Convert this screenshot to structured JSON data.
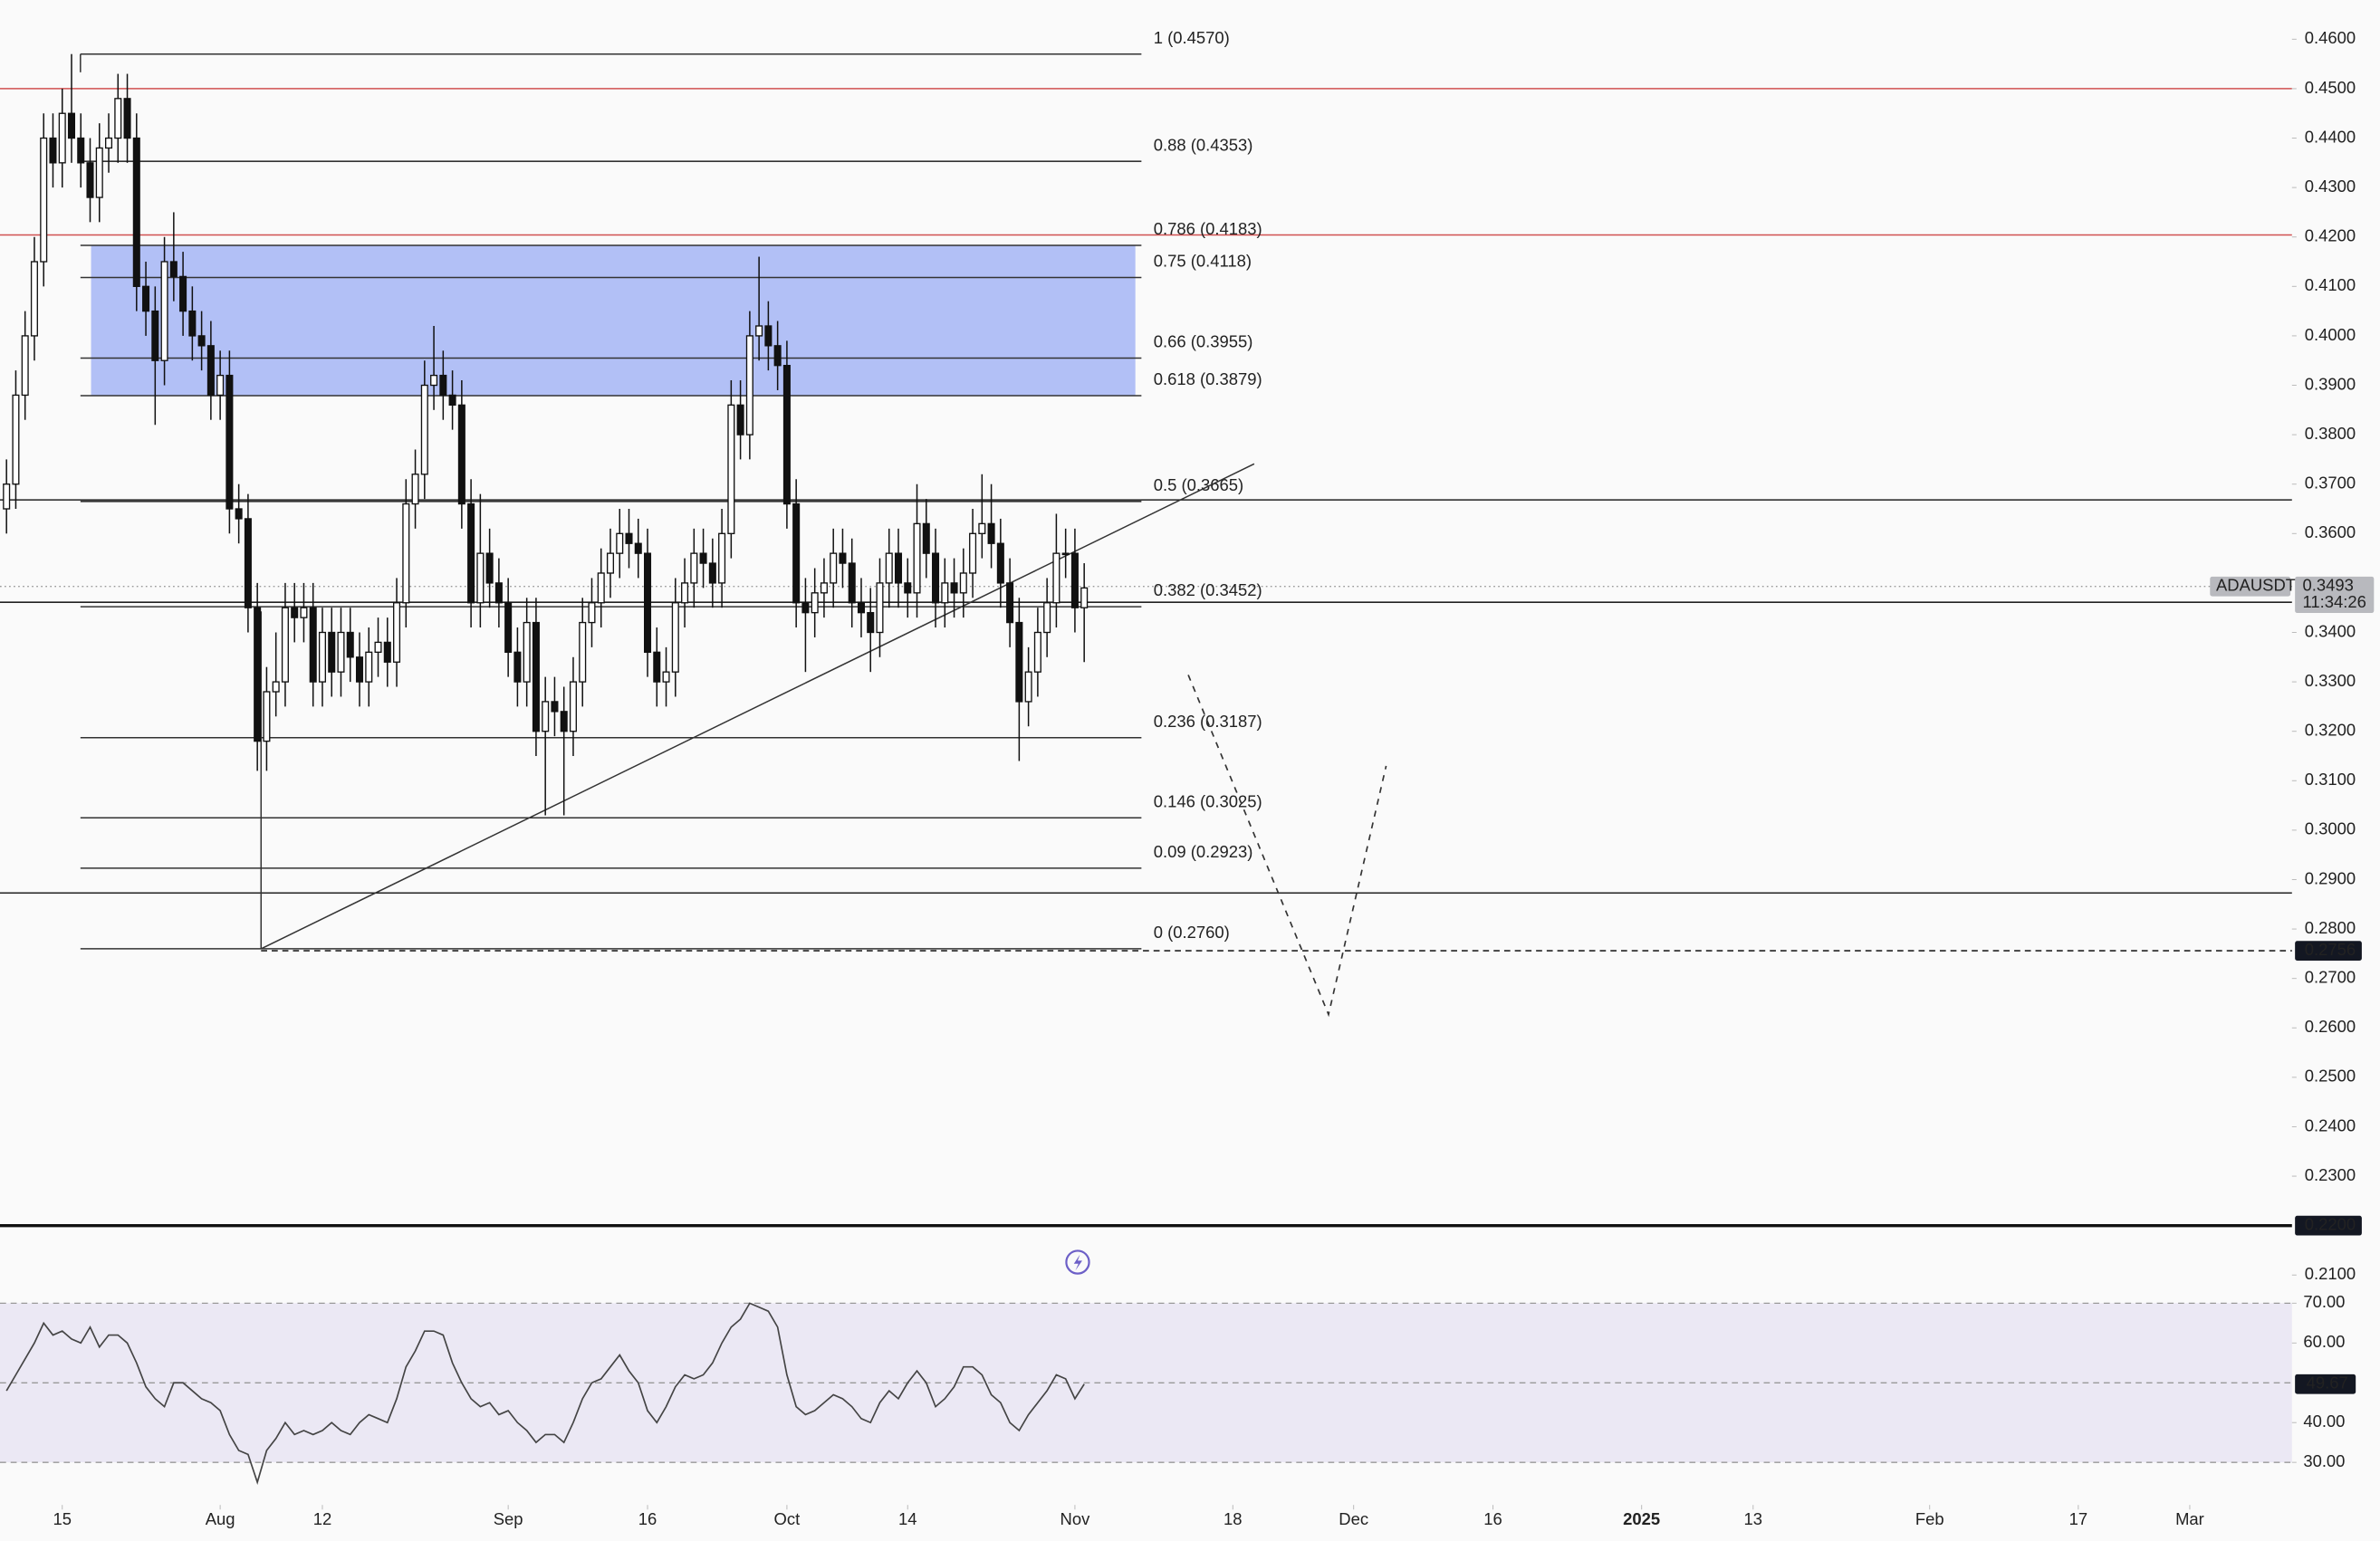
{
  "chart_data": {
    "type": "candlestick",
    "symbol": "ADAUSDT",
    "countdown": "11:34:26",
    "x": [
      8,
      9,
      10,
      11,
      12,
      13,
      14,
      15,
      16,
      17,
      18,
      19,
      20,
      21,
      22,
      23,
      24,
      25,
      26,
      27,
      28,
      29,
      30,
      31,
      32,
      33,
      34,
      35,
      36,
      37,
      38,
      39,
      40,
      41,
      42,
      43,
      44,
      45,
      46,
      47,
      48,
      49,
      50,
      51,
      52,
      53,
      54,
      55,
      56,
      57,
      58,
      59,
      60,
      61,
      62,
      63,
      64,
      65,
      66,
      67,
      68,
      69,
      70,
      71,
      72,
      73,
      74,
      75,
      76,
      77,
      78,
      79,
      80,
      81,
      82,
      83,
      84,
      85,
      86,
      87,
      88,
      89,
      90,
      91,
      92,
      93,
      94,
      95,
      96,
      97,
      98,
      99,
      100,
      101,
      102,
      103,
      104,
      105,
      106,
      107,
      108,
      109,
      110,
      111,
      112,
      113,
      114,
      115,
      116,
      117,
      118,
      119,
      120,
      121,
      122,
      123,
      124
    ],
    "open": [
      0.365,
      0.37,
      0.388,
      0.4,
      0.415,
      0.44,
      0.435,
      0.445,
      0.44,
      0.435,
      0.428,
      0.438,
      0.44,
      0.448,
      0.44,
      0.41,
      0.405,
      0.395,
      0.415,
      0.412,
      0.405,
      0.4,
      0.398,
      0.388,
      0.392,
      0.365,
      0.363,
      0.345,
      0.318,
      0.328,
      0.33,
      0.345,
      0.343,
      0.345,
      0.33,
      0.34,
      0.332,
      0.34,
      0.335,
      0.33,
      0.336,
      0.338,
      0.334,
      0.346,
      0.366,
      0.372,
      0.39,
      0.392,
      0.388,
      0.386,
      0.366,
      0.346,
      0.356,
      0.35,
      0.346,
      0.336,
      0.33,
      0.342,
      0.32,
      0.326,
      0.324,
      0.32,
      0.33,
      0.342,
      0.346,
      0.352,
      0.356,
      0.36,
      0.358,
      0.356,
      0.336,
      0.33,
      0.332,
      0.346,
      0.35,
      0.356,
      0.354,
      0.35,
      0.36,
      0.386,
      0.38,
      0.4,
      0.402,
      0.398,
      0.394,
      0.366,
      0.346,
      0.344,
      0.348,
      0.35,
      0.356,
      0.354,
      0.346,
      0.344,
      0.34,
      0.35,
      0.356,
      0.35,
      0.348,
      0.362,
      0.356,
      0.346,
      0.35,
      0.348,
      0.352,
      0.36,
      0.362,
      0.358,
      0.35,
      0.342,
      0.326,
      0.332,
      0.34,
      0.346,
      0.356,
      0.356,
      0.345
    ],
    "high": [
      0.375,
      0.393,
      0.405,
      0.42,
      0.445,
      0.445,
      0.45,
      0.457,
      0.445,
      0.44,
      0.443,
      0.445,
      0.453,
      0.453,
      0.445,
      0.415,
      0.41,
      0.42,
      0.425,
      0.417,
      0.41,
      0.405,
      0.403,
      0.397,
      0.397,
      0.37,
      0.368,
      0.35,
      0.333,
      0.34,
      0.35,
      0.35,
      0.35,
      0.35,
      0.345,
      0.345,
      0.345,
      0.345,
      0.34,
      0.341,
      0.343,
      0.343,
      0.351,
      0.371,
      0.377,
      0.395,
      0.402,
      0.397,
      0.393,
      0.391,
      0.371,
      0.368,
      0.361,
      0.355,
      0.351,
      0.341,
      0.347,
      0.347,
      0.331,
      0.331,
      0.329,
      0.335,
      0.347,
      0.351,
      0.357,
      0.361,
      0.365,
      0.365,
      0.363,
      0.361,
      0.341,
      0.337,
      0.351,
      0.355,
      0.361,
      0.361,
      0.359,
      0.365,
      0.391,
      0.391,
      0.405,
      0.416,
      0.407,
      0.403,
      0.399,
      0.371,
      0.351,
      0.353,
      0.355,
      0.361,
      0.361,
      0.359,
      0.351,
      0.349,
      0.355,
      0.361,
      0.361,
      0.355,
      0.37,
      0.367,
      0.361,
      0.355,
      0.355,
      0.357,
      0.365,
      0.372,
      0.37,
      0.363,
      0.355,
      0.347,
      0.337,
      0.345,
      0.351,
      0.364,
      0.361,
      0.361,
      0.354
    ],
    "low": [
      0.36,
      0.365,
      0.383,
      0.395,
      0.41,
      0.43,
      0.43,
      0.435,
      0.43,
      0.423,
      0.423,
      0.433,
      0.435,
      0.435,
      0.405,
      0.4,
      0.382,
      0.39,
      0.407,
      0.4,
      0.395,
      0.393,
      0.383,
      0.383,
      0.36,
      0.358,
      0.34,
      0.312,
      0.312,
      0.323,
      0.325,
      0.338,
      0.338,
      0.325,
      0.325,
      0.327,
      0.327,
      0.33,
      0.325,
      0.325,
      0.331,
      0.329,
      0.329,
      0.341,
      0.361,
      0.367,
      0.385,
      0.383,
      0.381,
      0.361,
      0.341,
      0.341,
      0.345,
      0.341,
      0.331,
      0.325,
      0.325,
      0.315,
      0.303,
      0.319,
      0.303,
      0.315,
      0.325,
      0.337,
      0.341,
      0.347,
      0.351,
      0.353,
      0.351,
      0.331,
      0.325,
      0.325,
      0.327,
      0.341,
      0.345,
      0.349,
      0.345,
      0.345,
      0.355,
      0.375,
      0.375,
      0.395,
      0.393,
      0.389,
      0.361,
      0.341,
      0.332,
      0.339,
      0.343,
      0.345,
      0.349,
      0.341,
      0.339,
      0.332,
      0.335,
      0.345,
      0.345,
      0.343,
      0.343,
      0.351,
      0.341,
      0.341,
      0.343,
      0.343,
      0.347,
      0.355,
      0.353,
      0.345,
      0.337,
      0.314,
      0.321,
      0.327,
      0.335,
      0.341,
      0.351,
      0.34,
      0.334
    ],
    "close": [
      0.37,
      0.388,
      0.4,
      0.415,
      0.44,
      0.435,
      0.445,
      0.44,
      0.435,
      0.428,
      0.438,
      0.44,
      0.448,
      0.44,
      0.41,
      0.405,
      0.395,
      0.415,
      0.412,
      0.405,
      0.4,
      0.398,
      0.388,
      0.392,
      0.365,
      0.363,
      0.345,
      0.318,
      0.328,
      0.33,
      0.345,
      0.343,
      0.345,
      0.33,
      0.34,
      0.332,
      0.34,
      0.335,
      0.33,
      0.336,
      0.338,
      0.334,
      0.346,
      0.366,
      0.372,
      0.39,
      0.392,
      0.388,
      0.386,
      0.366,
      0.346,
      0.356,
      0.35,
      0.346,
      0.336,
      0.33,
      0.342,
      0.32,
      0.326,
      0.324,
      0.32,
      0.33,
      0.342,
      0.346,
      0.352,
      0.356,
      0.36,
      0.358,
      0.356,
      0.336,
      0.33,
      0.332,
      0.346,
      0.35,
      0.356,
      0.354,
      0.35,
      0.36,
      0.386,
      0.38,
      0.4,
      0.402,
      0.398,
      0.394,
      0.366,
      0.346,
      0.344,
      0.348,
      0.35,
      0.356,
      0.354,
      0.346,
      0.344,
      0.34,
      0.35,
      0.356,
      0.35,
      0.348,
      0.362,
      0.356,
      0.346,
      0.35,
      0.348,
      0.352,
      0.36,
      0.362,
      0.358,
      0.35,
      0.342,
      0.326,
      0.332,
      0.34,
      0.346,
      0.356,
      0.356,
      0.345,
      0.349
    ],
    "xlim": [
      7.3,
      254.0
    ],
    "xticks": [
      {
        "value": 14,
        "label": "15"
      },
      {
        "value": 31,
        "label": "Aug"
      },
      {
        "value": 42,
        "label": "12"
      },
      {
        "value": 62,
        "label": "Sep"
      },
      {
        "value": 77,
        "label": "16"
      },
      {
        "value": 92,
        "label": "Oct"
      },
      {
        "value": 105,
        "label": "14"
      },
      {
        "value": 123,
        "label": "Nov"
      },
      {
        "value": 140,
        "label": "18"
      },
      {
        "value": 153,
        "label": "Dec"
      },
      {
        "value": 168,
        "label": "16"
      },
      {
        "value": 184,
        "label": "2025"
      },
      {
        "value": 196,
        "label": "13"
      },
      {
        "value": 215,
        "label": "Feb"
      },
      {
        "value": 231,
        "label": "17"
      },
      {
        "value": 243,
        "label": "Mar"
      }
    ],
    "ylim": [
      0.208,
      0.4674
    ],
    "yticks": [
      {
        "value": 0.46,
        "label": "0.4600"
      },
      {
        "value": 0.45,
        "label": "0.4500"
      },
      {
        "value": 0.44,
        "label": "0.4400"
      },
      {
        "value": 0.43,
        "label": "0.4300"
      },
      {
        "value": 0.42,
        "label": "0.4200"
      },
      {
        "value": 0.41,
        "label": "0.4100"
      },
      {
        "value": 0.4,
        "label": "0.4000"
      },
      {
        "value": 0.39,
        "label": "0.3900"
      },
      {
        "value": 0.38,
        "label": "0.3800"
      },
      {
        "value": 0.37,
        "label": "0.3700"
      },
      {
        "value": 0.36,
        "label": "0.3600"
      },
      {
        "value": 0.34,
        "label": "0.3400"
      },
      {
        "value": 0.33,
        "label": "0.3300"
      },
      {
        "value": 0.32,
        "label": "0.3200"
      },
      {
        "value": 0.31,
        "label": "0.3100"
      },
      {
        "value": 0.3,
        "label": "0.3000"
      },
      {
        "value": 0.29,
        "label": "0.2900"
      },
      {
        "value": 0.28,
        "label": "0.2800"
      },
      {
        "value": 0.27,
        "label": "0.2700"
      },
      {
        "value": 0.26,
        "label": "0.2600"
      },
      {
        "value": 0.25,
        "label": "0.2500"
      },
      {
        "value": 0.24,
        "label": "0.2400"
      },
      {
        "value": 0.23,
        "label": "0.2300"
      },
      {
        "value": 0.21,
        "label": "0.2100"
      }
    ],
    "fib_levels": [
      {
        "value": 0.457,
        "label": "1 (0.4570)",
        "color": "#222222"
      },
      {
        "value": 0.4353,
        "label": "0.88 (0.4353)",
        "color": "#222222"
      },
      {
        "value": 0.4183,
        "label": "0.786 (0.4183)",
        "color": "#222222"
      },
      {
        "value": 0.4118,
        "label": "0.75 (0.4118)",
        "color": "#222222"
      },
      {
        "value": 0.3955,
        "label": "0.66 (0.3955)",
        "color": "#b24a4a"
      },
      {
        "value": 0.3879,
        "label": "0.618 (0.3879)",
        "color": "#b24a4a"
      },
      {
        "value": 0.3665,
        "label": "0.5 (0.3665)",
        "color": "#222222"
      },
      {
        "value": 0.3452,
        "label": "0.382 (0.3452)",
        "color": "#222222"
      },
      {
        "value": 0.3187,
        "label": "0.236 (0.3187)",
        "color": "#222222"
      },
      {
        "value": 0.3025,
        "label": "0.146 (0.3025)",
        "color": "#222222"
      },
      {
        "value": 0.2923,
        "label": "0.09 (0.2923)",
        "color": "#222222"
      },
      {
        "value": 0.276,
        "label": "0 (0.2760)",
        "color": "#222222"
      }
    ],
    "fib_zone": [
      0.4183,
      0.3879
    ],
    "fib_zone_color": "#aebdf5",
    "horizontal_lines": [
      {
        "value": 0.45,
        "color": "#d05050"
      },
      {
        "value": 0.4204,
        "color": "#d05050"
      },
      {
        "value": 0.3668,
        "color": "#222222"
      },
      {
        "value": 0.3461,
        "color": "#222222"
      },
      {
        "value": 0.2873,
        "color": "#222222"
      }
    ],
    "trendline": {
      "x": [
        35.4,
        142.3
      ],
      "y": [
        0.276,
        0.3741
      ]
    },
    "projection": {
      "x": [
        135.2,
        150.3,
        156.5
      ],
      "y": [
        0.3314,
        0.2627,
        0.313
      ]
    },
    "last_price": 0.3493,
    "support_tag": 0.2756,
    "base_line": {
      "value": 0.22,
      "label": "0.2200"
    },
    "rsi": {
      "values": [
        48,
        52,
        56,
        60,
        65,
        62,
        63,
        61,
        60,
        64,
        59,
        62,
        62,
        60,
        55,
        49,
        46,
        44,
        50,
        50,
        48,
        46,
        45,
        43,
        37,
        33,
        32,
        25,
        33,
        36,
        40,
        37,
        38,
        37,
        38,
        40,
        38,
        37,
        40,
        42,
        41,
        40,
        46,
        54,
        58,
        63,
        63,
        62,
        55,
        50,
        46,
        44,
        45,
        42,
        43,
        40,
        38,
        35,
        37,
        37,
        35,
        40,
        46,
        50,
        51,
        54,
        57,
        53,
        50,
        43,
        40,
        44,
        49,
        52,
        51,
        52,
        55,
        60,
        64,
        66,
        70,
        69,
        68,
        64,
        52,
        44,
        42,
        43,
        45,
        47,
        46,
        44,
        41,
        40,
        45,
        48,
        46,
        50,
        53,
        50,
        44,
        46,
        49,
        54,
        54,
        52,
        47,
        45,
        40,
        38,
        42,
        45,
        48,
        52,
        51,
        46,
        49.67
      ],
      "ylim": [
        19.3,
        74.6
      ],
      "yticks": [
        {
          "value": 70,
          "label": "70.00"
        },
        {
          "value": 60,
          "label": "60.00"
        },
        {
          "value": 40,
          "label": "40.00"
        },
        {
          "value": 30,
          "label": "30.00"
        }
      ],
      "band": [
        30,
        70
      ],
      "mid": 50,
      "color": "#444444",
      "band_color": "#ebe8f4"
    }
  }
}
